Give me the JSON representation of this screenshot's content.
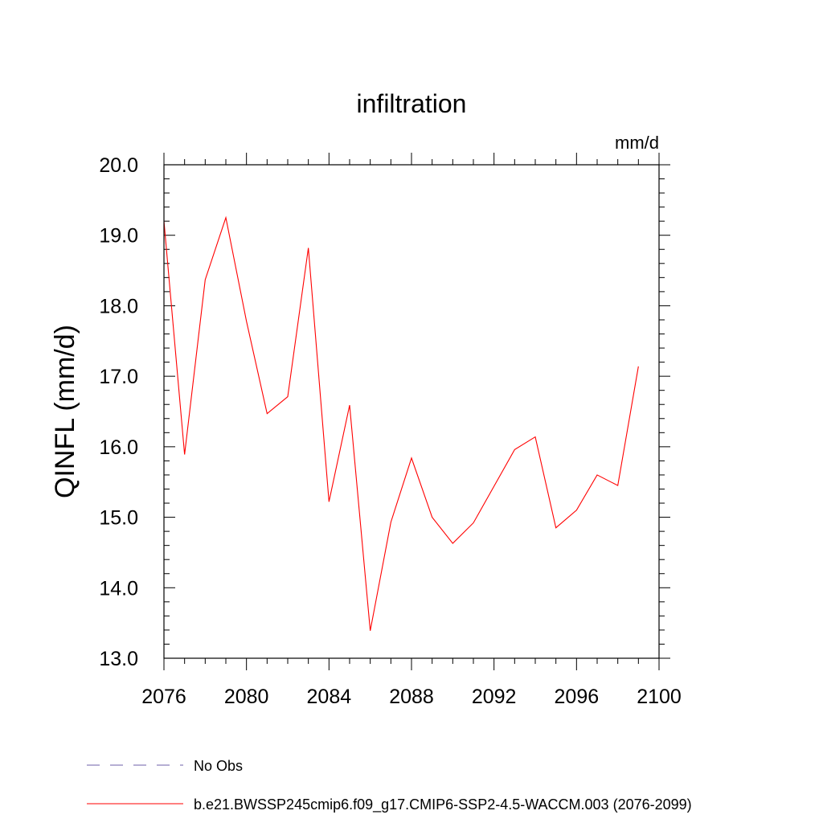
{
  "chart_data": {
    "type": "line",
    "title": "infiltration",
    "units_label": "mm/d",
    "ylabel": "QINFL  (mm/d)",
    "xlabel": "",
    "xlim": [
      2076,
      2100
    ],
    "ylim": [
      13.0,
      20.0
    ],
    "x_ticks": [
      2076,
      2080,
      2084,
      2088,
      2092,
      2096,
      2100
    ],
    "x_tick_labels": [
      "2076",
      "2080",
      "2084",
      "2088",
      "2092",
      "2096",
      "2100"
    ],
    "y_ticks": [
      13,
      14,
      15,
      16,
      17,
      18,
      19,
      20
    ],
    "y_tick_labels": [
      "13.0",
      "14.0",
      "15.0",
      "16.0",
      "17.0",
      "18.0",
      "19.0",
      "20.0"
    ],
    "grid": false,
    "legend_position": "bottom-left",
    "series": [
      {
        "name": "b.e21.BWSSP245cmip6.f09_g17.CMIP6-SSP2-4.5-WACCM.003 (2076-2099)",
        "color": "#ff0000",
        "style": "solid",
        "x": [
          2076,
          2077,
          2078,
          2079,
          2080,
          2081,
          2082,
          2083,
          2084,
          2085,
          2086,
          2087,
          2088,
          2089,
          2090,
          2091,
          2092,
          2093,
          2094,
          2095,
          2096,
          2097,
          2098,
          2099
        ],
        "y": [
          19.2,
          15.89,
          18.37,
          19.25,
          17.78,
          16.47,
          16.71,
          18.82,
          15.22,
          16.59,
          13.39,
          14.93,
          15.84,
          15.0,
          14.63,
          14.92,
          15.44,
          15.96,
          16.14,
          14.85,
          15.1,
          15.6,
          15.45,
          17.14
        ]
      }
    ],
    "legend": [
      {
        "label": "No Obs",
        "color": "#6e5fa8",
        "style": "dashed"
      },
      {
        "label": "b.e21.BWSSP245cmip6.f09_g17.CMIP6-SSP2-4.5-WACCM.003 (2076-2099)",
        "color": "#ff0000",
        "style": "solid"
      }
    ]
  }
}
